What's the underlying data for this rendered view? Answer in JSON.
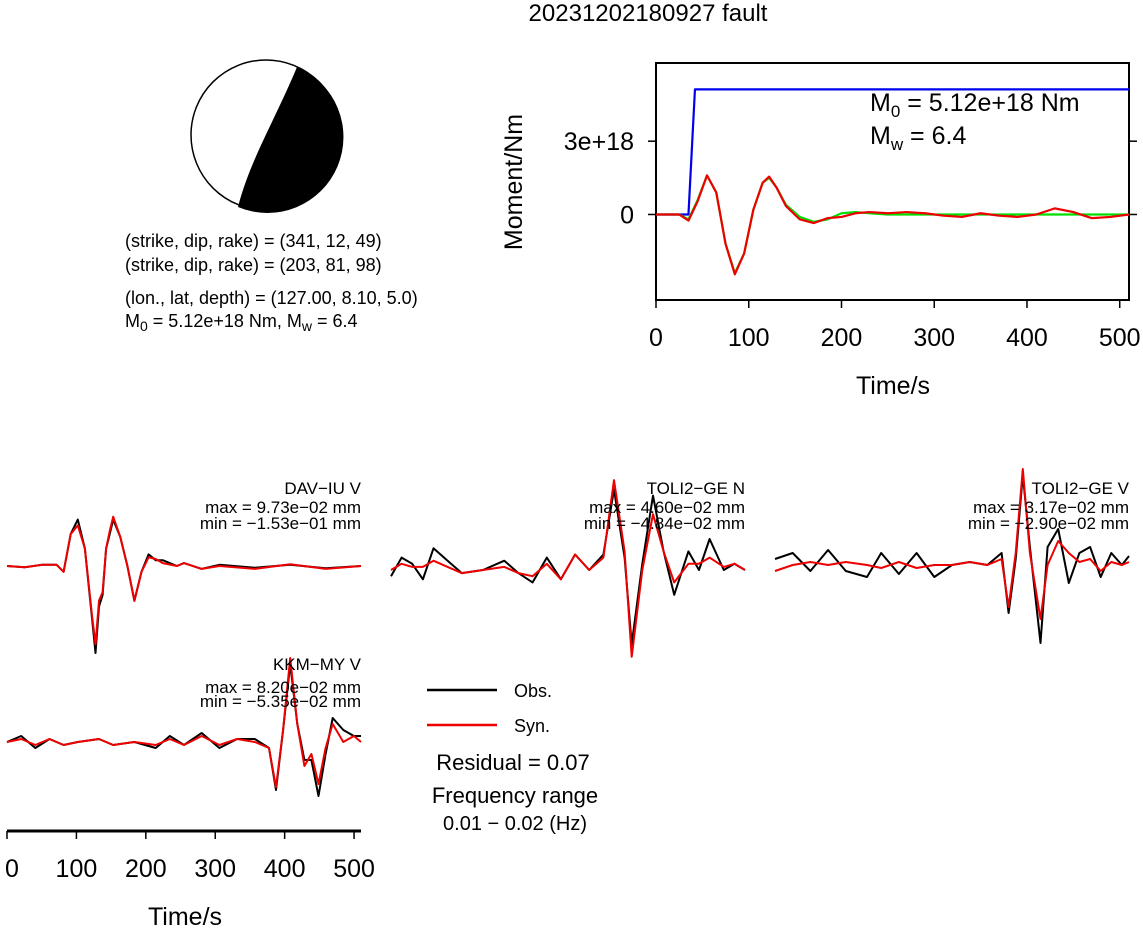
{
  "title": "20231202180927 fault",
  "mechanism": {
    "line1": "(strike, dip, rake) = (341, 12, 49)",
    "line2": "(strike, dip, rake) = (203, 81, 98)",
    "line3": "(lon., lat, depth) = (127.00, 8.10, 5.0)",
    "m0_label": "M",
    "m0_sub": "0",
    "m0_value": " = 5.12e+18 Nm, M",
    "mw_sub": "w",
    "mw_value": " = 6.4"
  },
  "moment_panel": {
    "ylabel": "Moment/Nm",
    "xlabel": "Time/s",
    "m0_text": " = 5.12e+18 Nm",
    "mw_text": " = 6.4",
    "m_letter": "M",
    "m0_sub": "0",
    "mw_sub": "w"
  },
  "legend": {
    "obs": "Obs.",
    "syn": "Syn.",
    "residual": "Residual = 0.07",
    "freq_title": "Frequency range",
    "freq_value": "0.01 − 0.02 (Hz)"
  },
  "waveform_axis": {
    "xlabel": "Time/s"
  },
  "stations": [
    {
      "name": "DAV−IU V",
      "max": "max = 9.73e−02 mm",
      "min": "min = −1.53e−01 mm"
    },
    {
      "name": "TOLI2−GE N",
      "max": "max = 4.60e−02 mm",
      "min": "min = −4.84e−02 mm"
    },
    {
      "name": "TOLI2−GE V",
      "max": "max = 3.17e−02 mm",
      "min": "min = −2.90e−02 mm"
    },
    {
      "name": "KKM−MY V",
      "max": "max = 8.20e−02 mm",
      "min": "min = −5.35e−02 mm"
    }
  ],
  "colors": {
    "observed": "#000000",
    "synthetic": "#ee0000",
    "cumulative_moment": "#0000ee",
    "moment_rate_smooth": "#00dd00"
  },
  "chart_data": [
    {
      "type": "line",
      "title": "",
      "xlabel": "Time/s",
      "ylabel": "Moment/Nm",
      "xlim": [
        0,
        510
      ],
      "ylim": [
        -3.5e+18,
        6.2e+18
      ],
      "x_ticks": [
        0,
        100,
        200,
        300,
        400,
        500
      ],
      "y_ticks": [
        0,
        3e+18
      ],
      "y_tick_labels": [
        "0",
        "3e+18"
      ],
      "series": [
        {
          "x": [
            0,
            35,
            42,
            510
          ],
          "values": [
            0,
            0,
            5.12e+18,
            5.12e+18
          ]
        },
        {
          "x": [
            0,
            25,
            35,
            45,
            55,
            65,
            75,
            85,
            95,
            105,
            115,
            122,
            130,
            140,
            155,
            170,
            185,
            200,
            215,
            230,
            250,
            270,
            290,
            310,
            330,
            350,
            370,
            390,
            410,
            430,
            450,
            470,
            490,
            510
          ],
          "values": [
            0,
            0,
            -2e+17,
            6e+17,
            1.6e+18,
            9e+17,
            -1.2e+18,
            -2.4e+18,
            -1.6e+18,
            2e+17,
            1.3e+18,
            1.5e+18,
            1.1e+18,
            4e+17,
            -1e+17,
            -3e+17,
            -2e+17,
            5e+16,
            1e+17,
            5e+16,
            0,
            0,
            0,
            0,
            0,
            0,
            0,
            0,
            0,
            0,
            0,
            0,
            0,
            0
          ]
        },
        {
          "x": [
            0,
            25,
            35,
            45,
            55,
            65,
            75,
            85,
            95,
            105,
            115,
            122,
            130,
            140,
            155,
            170,
            185,
            200,
            215,
            230,
            250,
            270,
            290,
            310,
            330,
            350,
            370,
            390,
            410,
            430,
            450,
            470,
            490,
            510
          ],
          "values": [
            0,
            0,
            -2.5e+17,
            5.5e+17,
            1.6e+18,
            9e+17,
            -1.2e+18,
            -2.45e+18,
            -1.6e+18,
            2e+17,
            1.3e+18,
            1.55e+18,
            1.1e+18,
            3.5e+17,
            -2e+17,
            -3.5e+17,
            -1.5e+17,
            -1e+17,
            5e+16,
            1e+17,
            5e+16,
            1e+17,
            5e+16,
            -5e+16,
            -1e+17,
            5e+16,
            -5e+16,
            -1e+17,
            0,
            2.5e+17,
            1e+17,
            -1.5e+17,
            -1e+17,
            0
          ]
        }
      ]
    },
    {
      "type": "line",
      "title": "",
      "xlabel": "Time/s",
      "xlim": [
        0,
        510
      ],
      "x_ticks": [
        0,
        100,
        200,
        300,
        400,
        500
      ],
      "y_ticks": [],
      "series": [
        {
          "name": "Obs.",
          "values": []
        },
        {
          "name": "Syn.",
          "values": []
        }
      ]
    }
  ]
}
